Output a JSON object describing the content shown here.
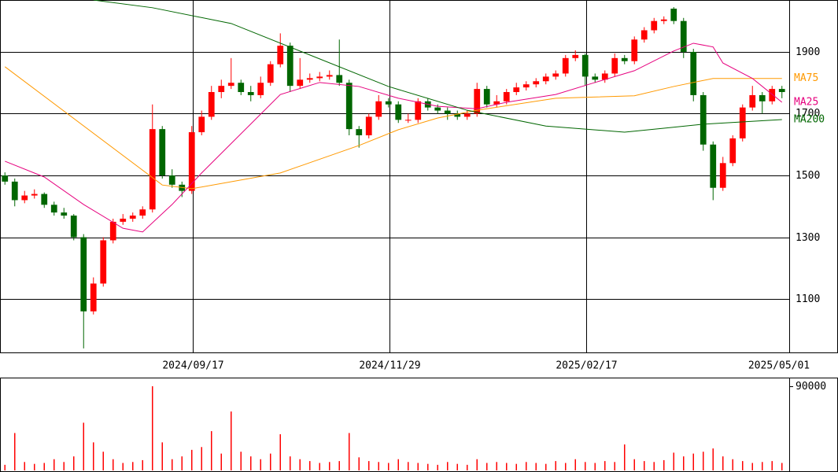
{
  "chart_data": {
    "type": "candlestick",
    "up_color": "#ff0000",
    "down_color": "#006600",
    "xlim": [
      -0.5,
      79.74
    ],
    "xticks": [
      {
        "value": 19.1,
        "label": "2024/09/17"
      },
      {
        "value": 39.1,
        "label": "2024/11/29"
      },
      {
        "value": 59.1,
        "label": "2025/02/17"
      },
      {
        "value": 79.74,
        "label": "2025/05/01"
      }
    ],
    "ylim": [
      927,
      2068
    ],
    "yticks": [
      1100,
      1300,
      1500,
      1700,
      1900
    ],
    "ohlc": [
      [
        1500,
        1510,
        1470,
        1480
      ],
      [
        1480,
        1490,
        1400,
        1420
      ],
      [
        1420,
        1450,
        1410,
        1435
      ],
      [
        1435,
        1455,
        1425,
        1440
      ],
      [
        1440,
        1445,
        1395,
        1405
      ],
      [
        1405,
        1415,
        1370,
        1380
      ],
      [
        1380,
        1395,
        1360,
        1370
      ],
      [
        1370,
        1375,
        1290,
        1300
      ],
      [
        1300,
        1310,
        940,
        1060
      ],
      [
        1060,
        1170,
        1050,
        1150
      ],
      [
        1150,
        1300,
        1140,
        1290
      ],
      [
        1290,
        1360,
        1280,
        1350
      ],
      [
        1350,
        1375,
        1340,
        1360
      ],
      [
        1360,
        1380,
        1350,
        1370
      ],
      [
        1370,
        1400,
        1360,
        1390
      ],
      [
        1390,
        1730,
        1380,
        1650
      ],
      [
        1650,
        1660,
        1490,
        1500
      ],
      [
        1500,
        1520,
        1460,
        1470
      ],
      [
        1470,
        1480,
        1430,
        1450
      ],
      [
        1450,
        1660,
        1440,
        1640
      ],
      [
        1640,
        1710,
        1630,
        1690
      ],
      [
        1690,
        1790,
        1680,
        1770
      ],
      [
        1770,
        1810,
        1750,
        1790
      ],
      [
        1790,
        1880,
        1780,
        1800
      ],
      [
        1800,
        1810,
        1760,
        1770
      ],
      [
        1770,
        1790,
        1740,
        1760
      ],
      [
        1760,
        1820,
        1750,
        1800
      ],
      [
        1800,
        1870,
        1790,
        1860
      ],
      [
        1860,
        1960,
        1850,
        1920
      ],
      [
        1920,
        1930,
        1770,
        1790
      ],
      [
        1790,
        1880,
        1780,
        1810
      ],
      [
        1810,
        1830,
        1800,
        1815
      ],
      [
        1815,
        1835,
        1805,
        1820
      ],
      [
        1820,
        1840,
        1810,
        1825
      ],
      [
        1825,
        1940,
        1790,
        1800
      ],
      [
        1800,
        1810,
        1630,
        1650
      ],
      [
        1650,
        1660,
        1590,
        1630
      ],
      [
        1630,
        1700,
        1620,
        1690
      ],
      [
        1690,
        1760,
        1680,
        1740
      ],
      [
        1740,
        1750,
        1720,
        1730
      ],
      [
        1730,
        1740,
        1670,
        1680
      ],
      [
        1680,
        1700,
        1670,
        1680
      ],
      [
        1680,
        1750,
        1670,
        1740
      ],
      [
        1740,
        1750,
        1710,
        1720
      ],
      [
        1720,
        1730,
        1700,
        1710
      ],
      [
        1710,
        1720,
        1680,
        1700
      ],
      [
        1700,
        1710,
        1680,
        1690
      ],
      [
        1690,
        1710,
        1680,
        1700
      ],
      [
        1700,
        1800,
        1690,
        1780
      ],
      [
        1780,
        1790,
        1720,
        1730
      ],
      [
        1730,
        1760,
        1720,
        1740
      ],
      [
        1740,
        1780,
        1730,
        1770
      ],
      [
        1770,
        1800,
        1760,
        1785
      ],
      [
        1785,
        1805,
        1775,
        1795
      ],
      [
        1795,
        1815,
        1785,
        1805
      ],
      [
        1805,
        1830,
        1795,
        1820
      ],
      [
        1820,
        1840,
        1810,
        1830
      ],
      [
        1830,
        1890,
        1820,
        1880
      ],
      [
        1880,
        1905,
        1870,
        1890
      ],
      [
        1890,
        1895,
        1790,
        1820
      ],
      [
        1820,
        1830,
        1800,
        1810
      ],
      [
        1810,
        1840,
        1800,
        1830
      ],
      [
        1830,
        1895,
        1820,
        1880
      ],
      [
        1880,
        1890,
        1860,
        1870
      ],
      [
        1870,
        1950,
        1860,
        1940
      ],
      [
        1940,
        1980,
        1930,
        1970
      ],
      [
        1970,
        2010,
        1960,
        2000
      ],
      [
        2000,
        2015,
        1990,
        2005
      ],
      [
        2040,
        2045,
        1990,
        2000
      ],
      [
        2000,
        2010,
        1880,
        1900
      ],
      [
        1900,
        1910,
        1740,
        1760
      ],
      [
        1760,
        1770,
        1580,
        1600
      ],
      [
        1600,
        1610,
        1420,
        1460
      ],
      [
        1460,
        1560,
        1450,
        1540
      ],
      [
        1540,
        1630,
        1530,
        1620
      ],
      [
        1620,
        1730,
        1610,
        1720
      ],
      [
        1720,
        1790,
        1710,
        1760
      ],
      [
        1760,
        1770,
        1700,
        1740
      ],
      [
        1740,
        1790,
        1730,
        1780
      ],
      [
        1780,
        1790,
        1750,
        1770
      ]
    ],
    "series": [
      {
        "name": "MA75",
        "color": "#ff9900",
        "x": [
          0,
          16,
          19,
          28,
          36,
          40,
          44,
          48,
          56,
          64,
          68,
          72,
          76,
          79
        ],
        "values": [
          1852,
          1469,
          1457,
          1508,
          1597,
          1648,
          1686,
          1711,
          1750,
          1758,
          1788,
          1814,
          1814,
          1814
        ]
      },
      {
        "name": "MA25",
        "color": "#e6007e",
        "x": [
          0,
          4,
          8,
          12,
          14,
          17,
          20,
          24,
          28,
          32,
          36,
          40,
          44,
          48,
          51,
          56,
          60,
          64,
          68,
          70,
          72,
          73,
          76,
          79
        ],
        "values": [
          1546,
          1495,
          1406,
          1329,
          1317,
          1406,
          1508,
          1635,
          1762,
          1801,
          1788,
          1750,
          1724,
          1716,
          1737,
          1762,
          1801,
          1839,
          1903,
          1928,
          1916,
          1864,
          1814,
          1737
        ]
      },
      {
        "name": "MA200",
        "color": "#006600",
        "x": [
          9,
          15,
          23,
          31,
          39,
          47,
          55,
          63,
          67,
          71,
          79
        ],
        "values": [
          2068,
          2043,
          1992,
          1890,
          1788,
          1711,
          1660,
          1640,
          1653,
          1666,
          1681
        ]
      }
    ],
    "volume": {
      "ylim": [
        0,
        99250
      ],
      "yticks": [
        90000
      ],
      "values": [
        6000,
        40000,
        9000,
        7000,
        8000,
        12000,
        9000,
        15000,
        51000,
        30000,
        20000,
        12000,
        8000,
        9000,
        11000,
        90000,
        30000,
        12000,
        15000,
        22000,
        25000,
        42000,
        18000,
        63000,
        20000,
        15000,
        12000,
        18000,
        38700,
        15000,
        12000,
        10000,
        8000,
        9000,
        10000,
        40000,
        14000,
        10000,
        9000,
        8000,
        12000,
        9000,
        8000,
        7000,
        6000,
        9000,
        7000,
        6000,
        12000,
        8000,
        9000,
        8000,
        7000,
        9000,
        8000,
        7000,
        10000,
        8000,
        12000,
        9000,
        8000,
        10000,
        9000,
        27800,
        12000,
        10000,
        9000,
        11000,
        19000,
        15000,
        18000,
        20000,
        23500,
        15000,
        12000,
        10000,
        8000,
        9000,
        10000,
        8000
      ]
    }
  }
}
